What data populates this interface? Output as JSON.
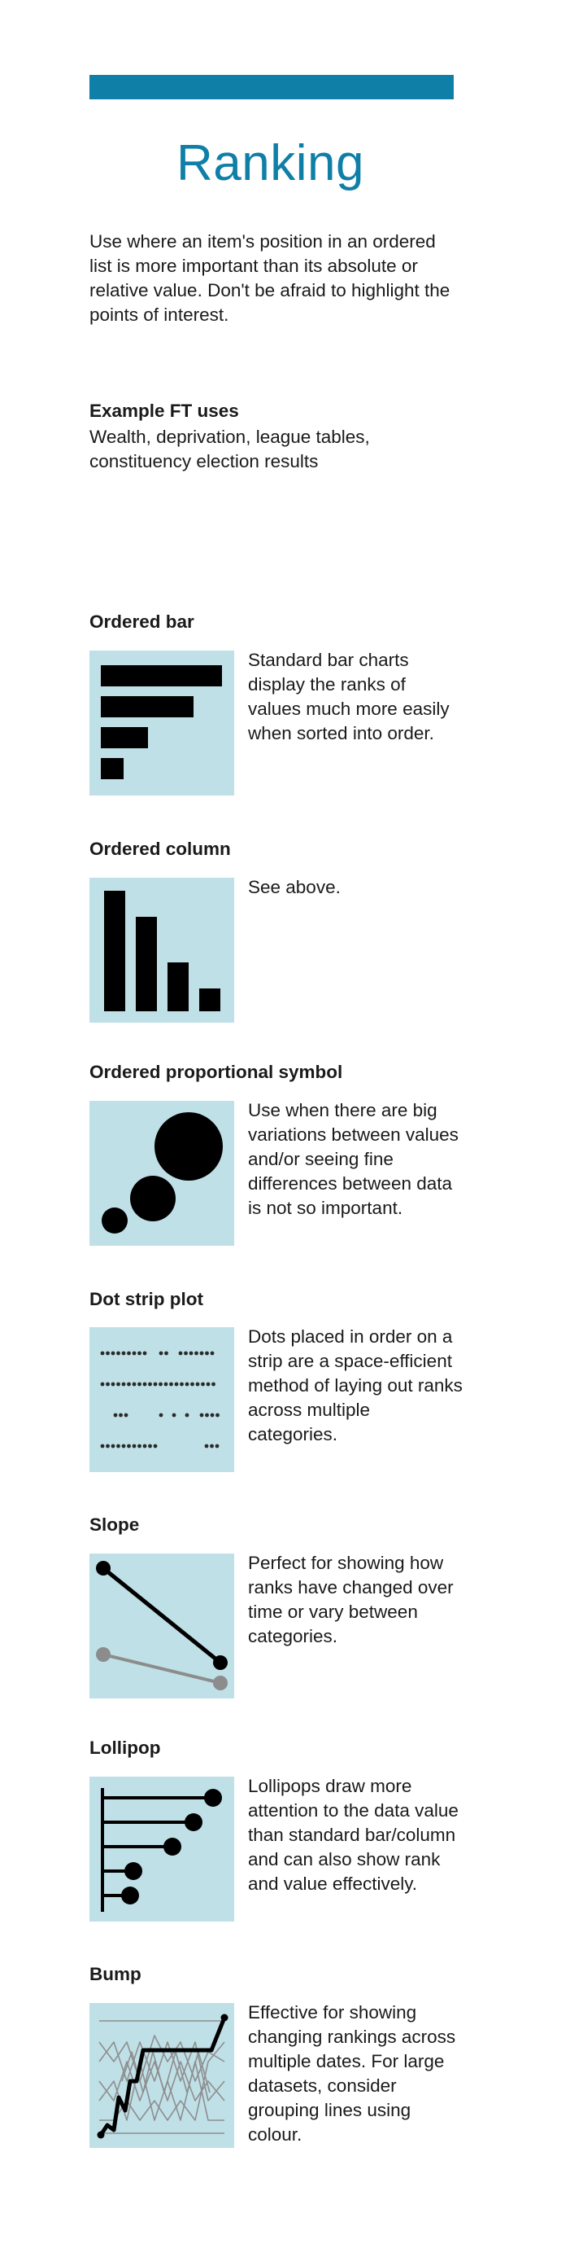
{
  "header": {
    "title": "Ranking",
    "intro": "Use where an item's position in an ordered list is more important than its absolute or relative value. Don't be afraid to highlight the points of interest.",
    "uses_heading": "Example FT uses",
    "uses_text": "Wealth, deprivation, league tables, constituency election results"
  },
  "colors": {
    "accent": "#0f7fa8",
    "thumb_bg": "#bfe0e7"
  },
  "sections": [
    {
      "title": "Ordered bar",
      "icon": "ordered-bar-chart-icon",
      "description": "Standard bar charts display the ranks of values much more easily when sorted into order."
    },
    {
      "title": "Ordered column",
      "icon": "ordered-column-chart-icon",
      "description": "See above."
    },
    {
      "title": "Ordered proportional symbol",
      "icon": "proportional-symbol-icon",
      "description": "Use when there are big variations between values and/or seeing fine differences between data is not so important."
    },
    {
      "title": "Dot strip plot",
      "icon": "dot-strip-plot-icon",
      "description": "Dots placed in order on a strip are a space-efficient method of laying out ranks across multiple categories."
    },
    {
      "title": "Slope",
      "icon": "slope-chart-icon",
      "description": "Perfect for showing how ranks have changed over time or vary between categories."
    },
    {
      "title": "Lollipop",
      "icon": "lollipop-chart-icon",
      "description": "Lollipops draw more attention to the data value than standard bar/column and can also show rank and value effectively."
    },
    {
      "title": "Bump",
      "icon": "bump-chart-icon",
      "description": "Effective for showing changing rankings across multiple dates. For large datasets, consider grouping lines using colour."
    }
  ]
}
